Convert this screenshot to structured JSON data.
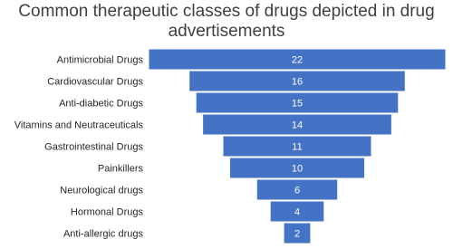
{
  "chart_data": {
    "type": "funnel",
    "title": "Common therapeutic classes of drugs depicted in drug advertisements",
    "categories": [
      "Antimicrobial Drugs",
      "Cardiovascular Drugs",
      "Anti-diabetic Drugs",
      "Vitamins and Neutraceuticals",
      "Gastrointestinal Drugs",
      "Painkillers",
      "Neurological drugs",
      "Hormonal Drugs",
      "Anti-allergic drugs"
    ],
    "values": [
      22,
      16,
      15,
      14,
      11,
      10,
      6,
      4,
      2
    ],
    "color": "#4472c4"
  }
}
